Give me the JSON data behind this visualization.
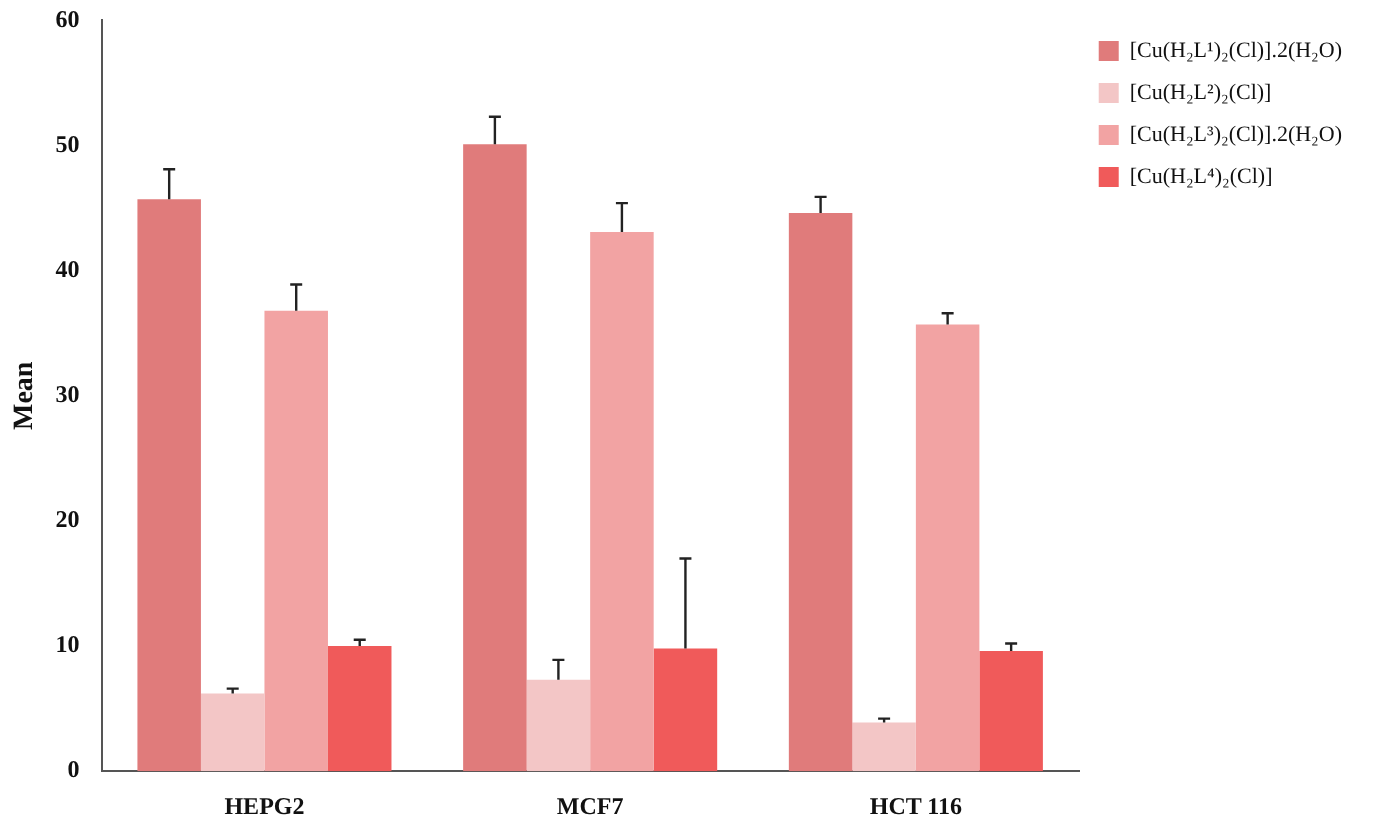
{
  "chart_data": {
    "type": "bar",
    "ylabel": "Mean",
    "categories": [
      "HEPG2",
      "MCF7",
      "HCT 116"
    ],
    "series": [
      {
        "name": "[Cu(H₂L¹)₂(Cl)].2(H₂O)",
        "color": "#e07b7b",
        "values": [
          45.7,
          50.1,
          44.6
        ],
        "errors": [
          [
            45.7,
            48.1
          ],
          [
            50.1,
            52.3
          ],
          [
            44.6,
            45.9
          ]
        ]
      },
      {
        "name": "[Cu(H₂L²)₂(Cl)]",
        "color": "#f3c6c6",
        "values": [
          6.2,
          7.3,
          3.9
        ],
        "errors": [
          [
            6.2,
            6.6
          ],
          [
            7.3,
            8.9
          ],
          [
            3.9,
            4.2
          ]
        ]
      },
      {
        "name": "[Cu(H₂L³)₂(Cl)].2(H₂O)",
        "color": "#f2a3a3",
        "values": [
          36.8,
          43.1,
          35.7
        ],
        "errors": [
          [
            36.8,
            38.9
          ],
          [
            43.1,
            45.4
          ],
          [
            35.7,
            36.6
          ]
        ]
      },
      {
        "name": "[Cu(H₂L⁴)₂(Cl)]",
        "color": "#f05a5a",
        "values": [
          10.0,
          9.8,
          9.6
        ],
        "errors": [
          [
            10.0,
            10.5
          ],
          [
            9.8,
            17.0
          ],
          [
            9.6,
            10.2
          ]
        ]
      }
    ],
    "ylim": [
      0,
      60
    ],
    "yticks": [
      0,
      10,
      20,
      30,
      40,
      50,
      60
    ],
    "grid": false,
    "legend": "top right"
  }
}
